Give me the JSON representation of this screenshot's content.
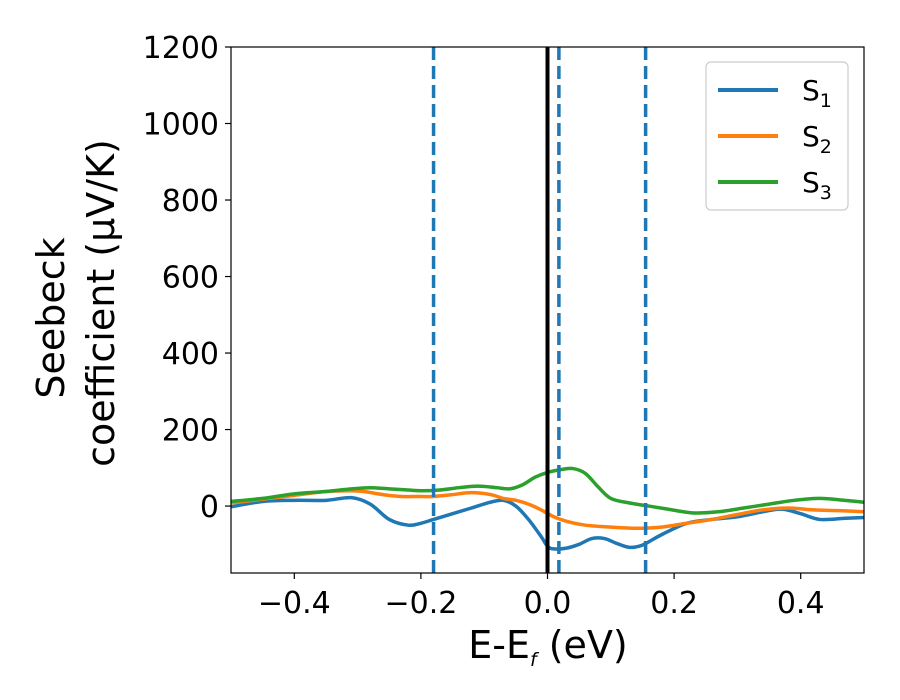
{
  "chart_data": {
    "type": "line",
    "xlabel": {
      "main": "E-E",
      "sub": "f",
      "suffix": " (eV)"
    },
    "ylabel": {
      "line1": "Seebeck",
      "line2": "coefficient  (μV/K)"
    },
    "xlim": [
      -0.5,
      0.5
    ],
    "ylim": [
      -175,
      1200
    ],
    "xticks": [
      -0.4,
      -0.2,
      0.0,
      0.2,
      0.4
    ],
    "xtick_labels": [
      "−0.4",
      "−0.2",
      "0.0",
      "0.2",
      "0.4"
    ],
    "yticks": [
      0,
      200,
      400,
      600,
      800,
      1000,
      1200
    ],
    "ytick_labels": [
      "0",
      "200",
      "400",
      "600",
      "800",
      "1000",
      "1200"
    ],
    "grid": false,
    "legend_position": "top-right",
    "vlines": [
      {
        "x": 0.0,
        "style": "solid",
        "color": "#000000"
      },
      {
        "x": -0.18,
        "style": "dashed",
        "color": "#1f77b4"
      },
      {
        "x": 0.018,
        "style": "dashed",
        "color": "#1f77b4"
      },
      {
        "x": 0.155,
        "style": "dashed",
        "color": "#1f77b4"
      }
    ],
    "series": [
      {
        "name": "S",
        "sub": "1",
        "color": "#1f77b4",
        "points": [
          [
            -0.5,
            -2
          ],
          [
            -0.45,
            12
          ],
          [
            -0.4,
            15
          ],
          [
            -0.35,
            15
          ],
          [
            -0.31,
            22
          ],
          [
            -0.28,
            5
          ],
          [
            -0.25,
            -35
          ],
          [
            -0.22,
            -50
          ],
          [
            -0.2,
            -45
          ],
          [
            -0.18,
            -35
          ],
          [
            -0.15,
            -20
          ],
          [
            -0.12,
            -5
          ],
          [
            -0.09,
            10
          ],
          [
            -0.07,
            15
          ],
          [
            -0.05,
            0
          ],
          [
            -0.03,
            -35
          ],
          [
            -0.01,
            -80
          ],
          [
            0.0,
            -105
          ],
          [
            0.01,
            -112
          ],
          [
            0.03,
            -110
          ],
          [
            0.05,
            -100
          ],
          [
            0.07,
            -85
          ],
          [
            0.09,
            -85
          ],
          [
            0.11,
            -98
          ],
          [
            0.13,
            -108
          ],
          [
            0.15,
            -102
          ],
          [
            0.18,
            -75
          ],
          [
            0.22,
            -45
          ],
          [
            0.26,
            -35
          ],
          [
            0.3,
            -28
          ],
          [
            0.34,
            -15
          ],
          [
            0.37,
            -8
          ],
          [
            0.4,
            -20
          ],
          [
            0.43,
            -35
          ],
          [
            0.47,
            -32
          ],
          [
            0.5,
            -30
          ]
        ]
      },
      {
        "name": "S",
        "sub": "2",
        "color": "#ff7f0e",
        "points": [
          [
            -0.5,
            8
          ],
          [
            -0.45,
            18
          ],
          [
            -0.4,
            28
          ],
          [
            -0.35,
            38
          ],
          [
            -0.31,
            40
          ],
          [
            -0.29,
            38
          ],
          [
            -0.26,
            30
          ],
          [
            -0.23,
            25
          ],
          [
            -0.2,
            25
          ],
          [
            -0.18,
            25
          ],
          [
            -0.15,
            30
          ],
          [
            -0.12,
            35
          ],
          [
            -0.09,
            30
          ],
          [
            -0.07,
            20
          ],
          [
            -0.05,
            15
          ],
          [
            -0.03,
            5
          ],
          [
            -0.01,
            -10
          ],
          [
            0.01,
            -28
          ],
          [
            0.03,
            -40
          ],
          [
            0.06,
            -50
          ],
          [
            0.1,
            -55
          ],
          [
            0.14,
            -58
          ],
          [
            0.18,
            -55
          ],
          [
            0.22,
            -45
          ],
          [
            0.26,
            -35
          ],
          [
            0.3,
            -22
          ],
          [
            0.34,
            -10
          ],
          [
            0.38,
            -5
          ],
          [
            0.42,
            -10
          ],
          [
            0.46,
            -12
          ],
          [
            0.5,
            -15
          ]
        ]
      },
      {
        "name": "S",
        "sub": "3",
        "color": "#2ca02c",
        "points": [
          [
            -0.5,
            12
          ],
          [
            -0.45,
            20
          ],
          [
            -0.4,
            32
          ],
          [
            -0.35,
            38
          ],
          [
            -0.31,
            45
          ],
          [
            -0.28,
            48
          ],
          [
            -0.25,
            45
          ],
          [
            -0.22,
            42
          ],
          [
            -0.2,
            40
          ],
          [
            -0.17,
            42
          ],
          [
            -0.14,
            48
          ],
          [
            -0.11,
            52
          ],
          [
            -0.08,
            48
          ],
          [
            -0.06,
            45
          ],
          [
            -0.04,
            55
          ],
          [
            -0.02,
            75
          ],
          [
            0.0,
            88
          ],
          [
            0.02,
            95
          ],
          [
            0.04,
            98
          ],
          [
            0.06,
            85
          ],
          [
            0.08,
            50
          ],
          [
            0.1,
            20
          ],
          [
            0.13,
            8
          ],
          [
            0.16,
            0
          ],
          [
            0.19,
            -8
          ],
          [
            0.23,
            -18
          ],
          [
            0.27,
            -15
          ],
          [
            0.31,
            -5
          ],
          [
            0.35,
            5
          ],
          [
            0.39,
            15
          ],
          [
            0.43,
            20
          ],
          [
            0.47,
            15
          ],
          [
            0.5,
            10
          ]
        ]
      }
    ]
  }
}
